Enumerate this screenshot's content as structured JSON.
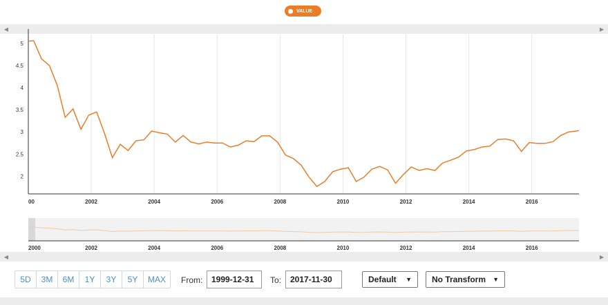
{
  "legend": {
    "label": "VALUE",
    "color": "#e87e2a"
  },
  "chart_data": {
    "type": "line",
    "xlabel": "",
    "ylabel": "",
    "xlim": [
      2000.0,
      2017.5
    ],
    "ylim": [
      1.6,
      5.2
    ],
    "yticks": [
      "2",
      "2.5",
      "3",
      "3.5",
      "4",
      "4.5",
      "5"
    ],
    "xticks": [
      "00",
      "2002",
      "2004",
      "2006",
      "2008",
      "2010",
      "2012",
      "2014",
      "2016"
    ],
    "navigator_xticks": [
      "2000",
      "2002",
      "2004",
      "2006",
      "2008",
      "2010",
      "2012",
      "2014",
      "2016"
    ],
    "grid": true,
    "series": [
      {
        "color": "#e87e2a",
        "x": [
          2000.0,
          2000.17,
          2000.42,
          2000.67,
          2000.92,
          2001.17,
          2001.42,
          2001.67,
          2001.92,
          2002.17,
          2002.42,
          2002.67,
          2002.92,
          2003.17,
          2003.42,
          2003.67,
          2003.92,
          2004.17,
          2004.42,
          2004.67,
          2004.92,
          2005.17,
          2005.42,
          2005.67,
          2005.92,
          2006.17,
          2006.42,
          2006.67,
          2006.92,
          2007.17,
          2007.42,
          2007.67,
          2007.92,
          2008.17,
          2008.42,
          2008.67,
          2008.92,
          2009.17,
          2009.42,
          2009.67,
          2009.92,
          2010.17,
          2010.42,
          2010.67,
          2010.92,
          2011.17,
          2011.42,
          2011.67,
          2011.92,
          2012.17,
          2012.42,
          2012.67,
          2012.92,
          2013.17,
          2013.42,
          2013.67,
          2013.92,
          2014.17,
          2014.42,
          2014.67,
          2014.92,
          2015.17,
          2015.42,
          2015.67,
          2015.92,
          2016.17,
          2016.42,
          2016.67,
          2016.92,
          2017.17,
          2017.42,
          2017.5
        ],
        "y": [
          5.05,
          5.06,
          4.65,
          4.5,
          4.05,
          3.33,
          3.52,
          3.06,
          3.38,
          3.45,
          2.97,
          2.42,
          2.72,
          2.58,
          2.8,
          2.82,
          3.02,
          2.98,
          2.95,
          2.77,
          2.92,
          2.77,
          2.73,
          2.77,
          2.75,
          2.75,
          2.66,
          2.7,
          2.8,
          2.78,
          2.91,
          2.91,
          2.77,
          2.48,
          2.4,
          2.25,
          1.98,
          1.77,
          1.88,
          2.1,
          2.16,
          2.19,
          1.88,
          1.98,
          2.16,
          2.22,
          2.14,
          1.84,
          2.04,
          2.21,
          2.13,
          2.17,
          2.13,
          2.3,
          2.36,
          2.43,
          2.57,
          2.6,
          2.66,
          2.68,
          2.83,
          2.84,
          2.8,
          2.56,
          2.76,
          2.74,
          2.74,
          2.78,
          2.92,
          3.0,
          3.02,
          3.03
        ]
      }
    ]
  },
  "range_selector": {
    "buttons": [
      "5D",
      "3M",
      "6M",
      "1Y",
      "3Y",
      "5Y",
      "MAX"
    ]
  },
  "date_range": {
    "from_label": "From:",
    "from_value": "1999-12-31",
    "to_label": "To:",
    "to_value": "2017-11-30"
  },
  "selects": {
    "frequency": "Default",
    "transform": "No Transform"
  },
  "icons": {
    "scroll_left": "chevron-left-icon",
    "scroll_right": "chevron-right-icon",
    "dropdown": "caret-down-icon"
  }
}
